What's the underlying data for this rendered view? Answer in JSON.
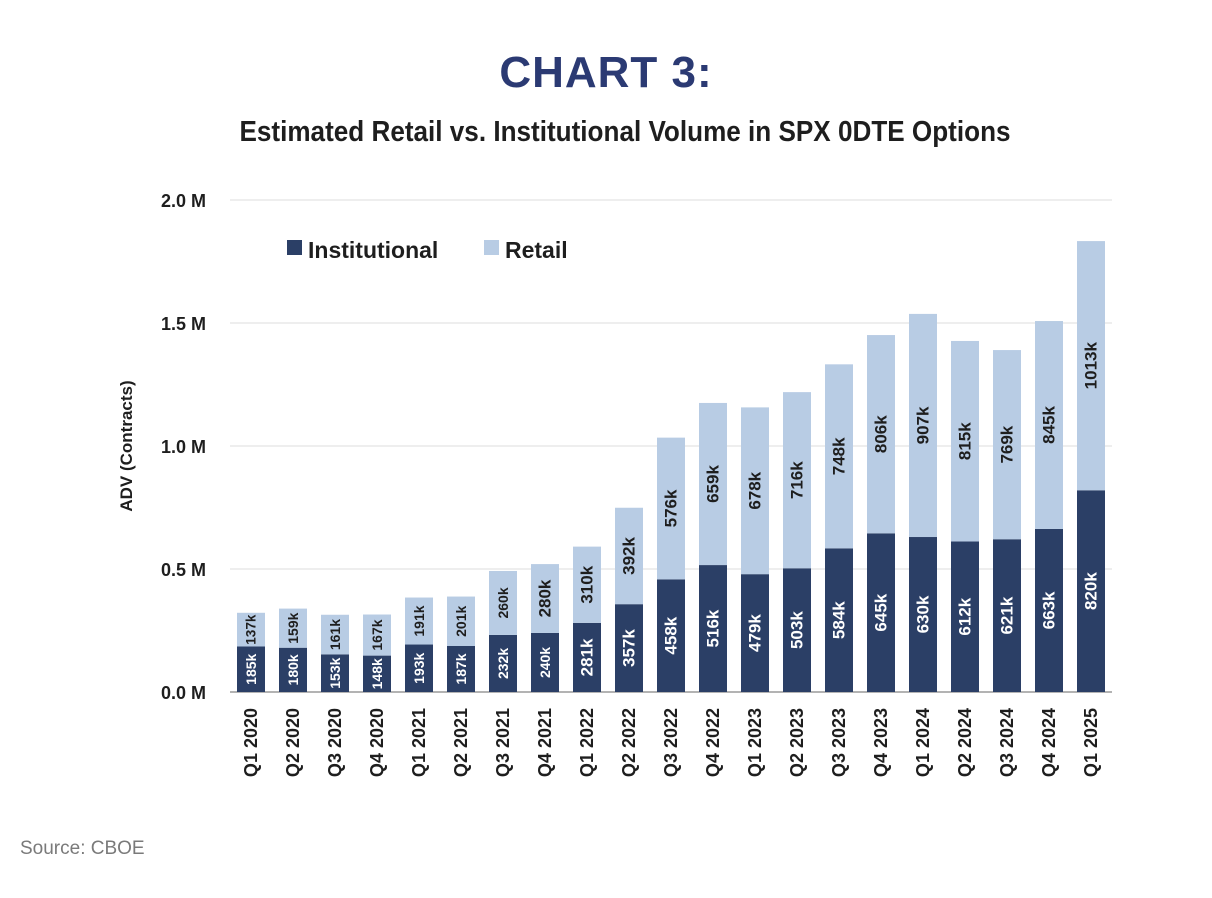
{
  "header": {
    "title": "CHART 3:",
    "subtitle": "Estimated Retail vs. Institutional Volume in SPX 0DTE Options"
  },
  "source": "Source: CBOE",
  "colors": {
    "institutional": "#2b3f66",
    "retail": "#b8cce4",
    "grid": "#dcdcdc",
    "title": "#2b3a73"
  },
  "chart_data": {
    "type": "bar",
    "stacked": true,
    "title": "CHART 3:",
    "subtitle": "Estimated Retail vs. Institutional Volume in SPX 0DTE Options",
    "xlabel": "",
    "ylabel": "ADV (Contracts)",
    "ylim": [
      0,
      2000000
    ],
    "y_ticks": [
      0,
      500000,
      1000000,
      1500000,
      2000000
    ],
    "y_tick_labels": [
      "0.0 M",
      "0.5 M",
      "1.0 M",
      "1.5 M",
      "2.0 M"
    ],
    "grid": true,
    "legend_position": "top-left",
    "categories": [
      "Q1 2020",
      "Q2 2020",
      "Q3 2020",
      "Q4 2020",
      "Q1 2021",
      "Q2 2021",
      "Q3 2021",
      "Q4 2021",
      "Q1 2022",
      "Q2 2022",
      "Q3 2022",
      "Q4 2022",
      "Q1 2023",
      "Q2 2023",
      "Q3 2023",
      "Q4 2023",
      "Q1 2024",
      "Q2 2024",
      "Q3 2024",
      "Q4 2024",
      "Q1 2025"
    ],
    "series": [
      {
        "name": "Institutional",
        "values": [
          185000,
          180000,
          153000,
          148000,
          193000,
          187000,
          232000,
          240000,
          281000,
          357000,
          458000,
          516000,
          479000,
          503000,
          584000,
          645000,
          630000,
          612000,
          621000,
          663000,
          820000
        ],
        "labels": [
          "185k",
          "180k",
          "153k",
          "148k",
          "193k",
          "187k",
          "232k",
          "240k",
          "281k",
          "357k",
          "458k",
          "516k",
          "479k",
          "503k",
          "584k",
          "645k",
          "630k",
          "612k",
          "621k",
          "663k",
          "820k"
        ]
      },
      {
        "name": "Retail",
        "values": [
          137000,
          159000,
          161000,
          167000,
          191000,
          201000,
          260000,
          280000,
          310000,
          392000,
          576000,
          659000,
          678000,
          716000,
          748000,
          806000,
          907000,
          815000,
          769000,
          845000,
          1013000
        ],
        "labels": [
          "137k",
          "159k",
          "161k",
          "167k",
          "191k",
          "201k",
          "260k",
          "280k",
          "310k",
          "392k",
          "576k",
          "659k",
          "678k",
          "716k",
          "748k",
          "806k",
          "907k",
          "815k",
          "769k",
          "845k",
          "1013k"
        ]
      }
    ]
  }
}
